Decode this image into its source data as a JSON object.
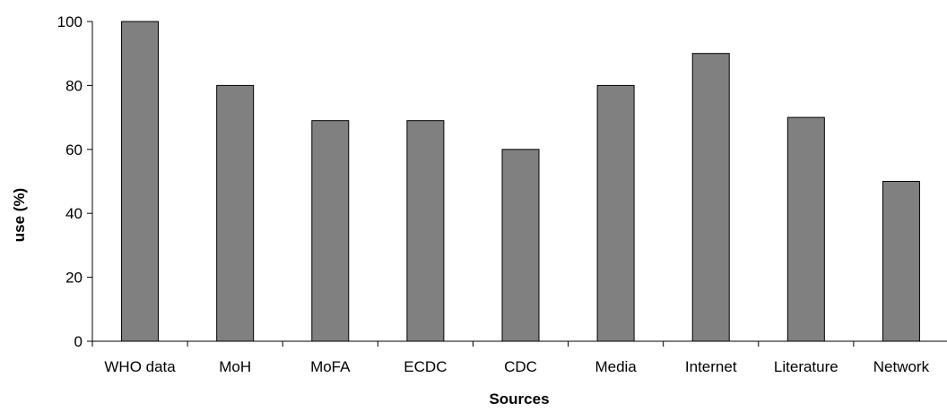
{
  "chart_data": {
    "type": "bar",
    "title": "",
    "xlabel": "Sources",
    "ylabel": "use (%)",
    "categories": [
      "WHO data",
      "MoH",
      "MoFA",
      "ECDC",
      "CDC",
      "Media",
      "Internet",
      "Literature",
      "Network"
    ],
    "values": [
      100,
      80,
      69,
      69,
      60,
      80,
      90,
      70,
      50
    ],
    "ylim": [
      0,
      100
    ],
    "yticks": [
      "0",
      "20",
      "40",
      "60",
      "80",
      "100"
    ],
    "grid": false,
    "legend": "none",
    "colors": {
      "bar_fill": "#808080",
      "bar_stroke": "#000000",
      "axis": "#000000"
    }
  }
}
